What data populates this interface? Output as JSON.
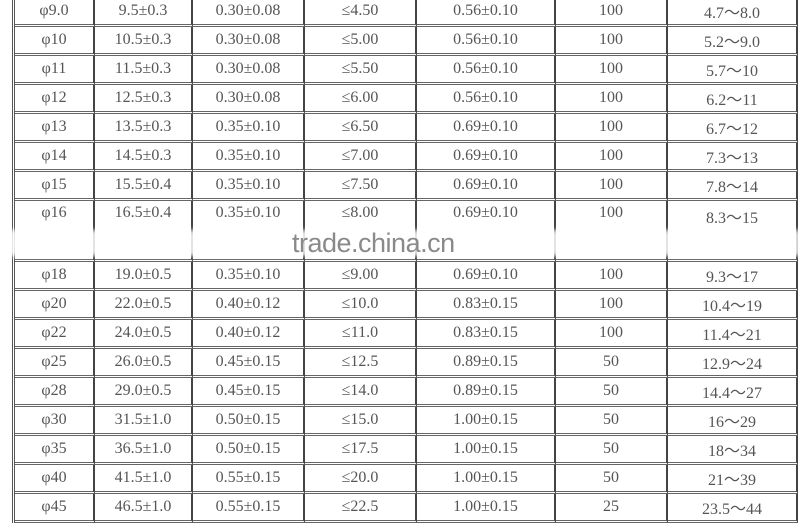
{
  "rows": [
    [
      "φ9.0",
      "9.5±0.3",
      "0.30±0.08",
      "≤4.50",
      "0.56±0.10",
      "100",
      "4.7～8.0"
    ],
    [
      "φ10",
      "10.5±0.3",
      "0.30±0.08",
      "≤5.00",
      "0.56±0.10",
      "100",
      "5.2～9.0"
    ],
    [
      "φ11",
      "11.5±0.3",
      "0.30±0.08",
      "≤5.50",
      "0.56±0.10",
      "100",
      "5.7～10"
    ],
    [
      "φ12",
      "12.5±0.3",
      "0.30±0.08",
      "≤6.00",
      "0.56±0.10",
      "100",
      "6.2～11"
    ],
    [
      "φ13",
      "13.5±0.3",
      "0.35±0.10",
      "≤6.50",
      "0.69±0.10",
      "100",
      "6.7～12"
    ],
    [
      "φ14",
      "14.5±0.3",
      "0.35±0.10",
      "≤7.00",
      "0.69±0.10",
      "100",
      "7.3～13"
    ],
    [
      "φ15",
      "15.5±0.4",
      "0.35±0.10",
      "≤7.50",
      "0.69±0.10",
      "100",
      "7.8～14"
    ],
    [
      "φ16",
      "16.5±0.4",
      "0.35±0.10",
      "≤8.00",
      "0.69±0.10",
      "100",
      "8.3～15"
    ],
    [
      "φ18",
      "19.0±0.5",
      "0.35±0.10",
      "≤9.00",
      "0.69±0.10",
      "100",
      "9.3～17"
    ],
    [
      "φ20",
      "22.0±0.5",
      "0.40±0.12",
      "≤10.0",
      "0.83±0.15",
      "100",
      "10.4～19"
    ],
    [
      "φ22",
      "24.0±0.5",
      "0.40±0.12",
      "≤11.0",
      "0.83±0.15",
      "100",
      "11.4～21"
    ],
    [
      "φ25",
      "26.0±0.5",
      "0.45±0.15",
      "≤12.5",
      "0.89±0.15",
      "50",
      "12.9～24"
    ],
    [
      "φ28",
      "29.0±0.5",
      "0.45±0.15",
      "≤14.0",
      "0.89±0.15",
      "50",
      "14.4～27"
    ],
    [
      "φ30",
      "31.5±1.0",
      "0.50±0.15",
      "≤15.0",
      "1.00±0.15",
      "50",
      "16～29"
    ],
    [
      "φ35",
      "36.5±1.0",
      "0.50±0.15",
      "≤17.5",
      "1.00±0.15",
      "50",
      "18～34"
    ],
    [
      "φ40",
      "41.5±1.0",
      "0.55±0.15",
      "≤20.0",
      "1.00±0.15",
      "50",
      "21～39"
    ],
    [
      "φ45",
      "46.5±1.0",
      "0.55±0.15",
      "≤22.5",
      "1.00±0.15",
      "25",
      "23.5～44"
    ]
  ],
  "watermark": "trade.china.cn"
}
